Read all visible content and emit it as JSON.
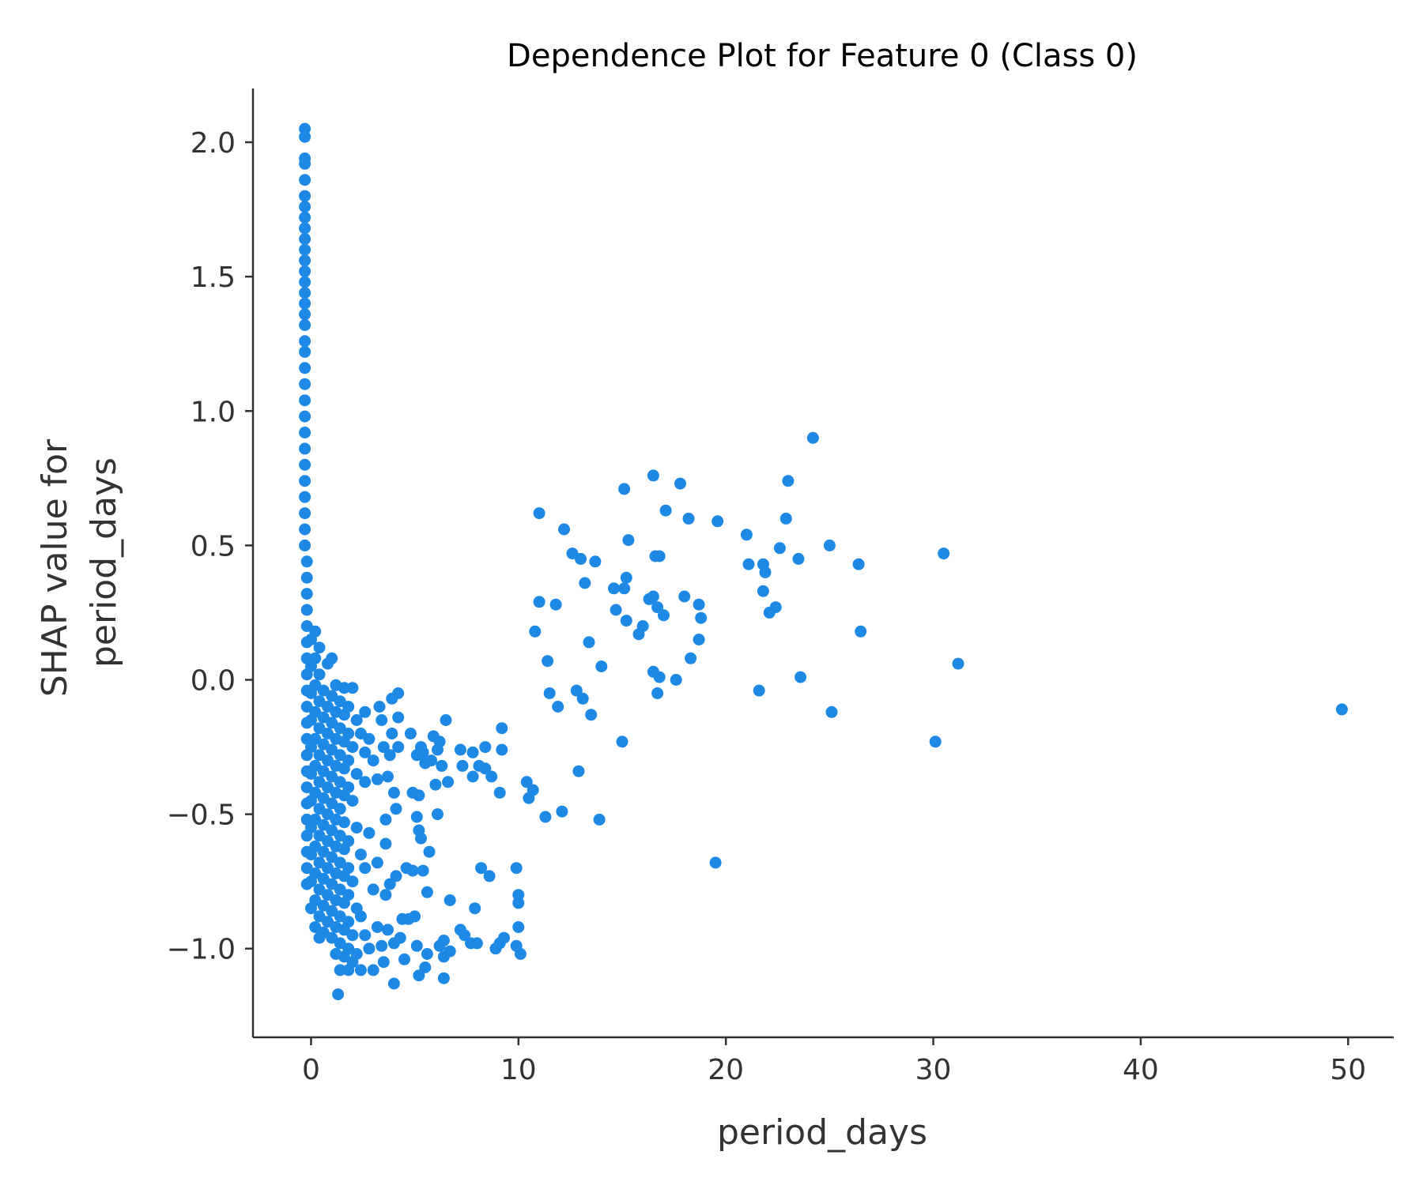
{
  "chart_data": {
    "type": "scatter",
    "title": "Dependence Plot for Feature 0 (Class 0)",
    "xlabel": "period_days",
    "ylabel_lines": [
      "SHAP value for",
      "period_days"
    ],
    "xlim": [
      -2.8,
      52.2
    ],
    "ylim": [
      -1.33,
      2.2
    ],
    "xticks": [
      0,
      10,
      20,
      30,
      40,
      50
    ],
    "xtick_labels": [
      "0",
      "10",
      "20",
      "30",
      "40",
      "50"
    ],
    "yticks": [
      -1.0,
      -0.5,
      0.0,
      0.5,
      1.0,
      1.5,
      2.0
    ],
    "ytick_labels": [
      "−1.0",
      "−0.5",
      "0.0",
      "0.5",
      "1.0",
      "1.5",
      "2.0"
    ],
    "grid": false,
    "point_color": "#1e88e5",
    "points": [
      [
        -0.3,
        2.05
      ],
      [
        -0.3,
        2.02
      ],
      [
        -0.3,
        1.94
      ],
      [
        -0.3,
        1.92
      ],
      [
        -0.3,
        1.86
      ],
      [
        -0.3,
        1.8
      ],
      [
        -0.3,
        1.76
      ],
      [
        -0.3,
        1.72
      ],
      [
        -0.3,
        1.68
      ],
      [
        -0.3,
        1.64
      ],
      [
        -0.3,
        1.6
      ],
      [
        -0.3,
        1.56
      ],
      [
        -0.3,
        1.52
      ],
      [
        -0.3,
        1.48
      ],
      [
        -0.3,
        1.44
      ],
      [
        -0.3,
        1.4
      ],
      [
        -0.3,
        1.36
      ],
      [
        -0.3,
        1.32
      ],
      [
        -0.3,
        1.26
      ],
      [
        -0.3,
        1.22
      ],
      [
        -0.3,
        1.16
      ],
      [
        -0.3,
        1.1
      ],
      [
        -0.3,
        1.04
      ],
      [
        -0.3,
        0.98
      ],
      [
        -0.3,
        0.92
      ],
      [
        -0.3,
        0.86
      ],
      [
        -0.3,
        0.8
      ],
      [
        -0.3,
        0.74
      ],
      [
        -0.3,
        0.68
      ],
      [
        -0.3,
        0.62
      ],
      [
        -0.3,
        0.56
      ],
      [
        -0.3,
        0.5
      ],
      [
        -0.2,
        0.44
      ],
      [
        -0.2,
        0.38
      ],
      [
        -0.2,
        0.32
      ],
      [
        -0.2,
        0.26
      ],
      [
        -0.2,
        0.2
      ],
      [
        -0.2,
        0.14
      ],
      [
        -0.2,
        0.08
      ],
      [
        -0.2,
        0.02
      ],
      [
        -0.2,
        -0.04
      ],
      [
        -0.2,
        -0.1
      ],
      [
        -0.2,
        -0.16
      ],
      [
        -0.2,
        -0.22
      ],
      [
        -0.2,
        -0.28
      ],
      [
        -0.2,
        -0.34
      ],
      [
        -0.2,
        -0.4
      ],
      [
        -0.2,
        -0.46
      ],
      [
        -0.2,
        -0.52
      ],
      [
        -0.2,
        -0.58
      ],
      [
        -0.2,
        -0.64
      ],
      [
        -0.2,
        -0.7
      ],
      [
        -0.2,
        -0.76
      ],
      [
        0.0,
        -0.05
      ],
      [
        0.0,
        -0.15
      ],
      [
        0.0,
        -0.25
      ],
      [
        0.0,
        -0.35
      ],
      [
        0.0,
        -0.45
      ],
      [
        0.0,
        -0.55
      ],
      [
        0.0,
        -0.65
      ],
      [
        0.0,
        -0.75
      ],
      [
        0.0,
        -0.85
      ],
      [
        0.0,
        0.05
      ],
      [
        0.0,
        0.15
      ],
      [
        0.2,
        0.18
      ],
      [
        0.2,
        0.08
      ],
      [
        0.2,
        -0.02
      ],
      [
        0.2,
        -0.12
      ],
      [
        0.2,
        -0.22
      ],
      [
        0.2,
        -0.32
      ],
      [
        0.2,
        -0.42
      ],
      [
        0.2,
        -0.52
      ],
      [
        0.2,
        -0.62
      ],
      [
        0.2,
        -0.72
      ],
      [
        0.2,
        -0.82
      ],
      [
        0.2,
        -0.92
      ],
      [
        0.4,
        0.12
      ],
      [
        0.4,
        0.02
      ],
      [
        0.4,
        -0.08
      ],
      [
        0.4,
        -0.18
      ],
      [
        0.4,
        -0.28
      ],
      [
        0.4,
        -0.38
      ],
      [
        0.4,
        -0.48
      ],
      [
        0.4,
        -0.58
      ],
      [
        0.4,
        -0.68
      ],
      [
        0.4,
        -0.78
      ],
      [
        0.4,
        -0.88
      ],
      [
        0.4,
        -0.96
      ],
      [
        0.6,
        -0.04
      ],
      [
        0.6,
        -0.14
      ],
      [
        0.6,
        -0.24
      ],
      [
        0.6,
        -0.34
      ],
      [
        0.6,
        -0.44
      ],
      [
        0.6,
        -0.54
      ],
      [
        0.6,
        -0.64
      ],
      [
        0.6,
        -0.74
      ],
      [
        0.6,
        -0.84
      ],
      [
        0.6,
        -0.94
      ],
      [
        0.8,
        0.06
      ],
      [
        0.8,
        -0.1
      ],
      [
        0.8,
        -0.2
      ],
      [
        0.8,
        -0.3
      ],
      [
        0.8,
        -0.4
      ],
      [
        0.8,
        -0.5
      ],
      [
        0.8,
        -0.6
      ],
      [
        0.8,
        -0.7
      ],
      [
        0.8,
        -0.8
      ],
      [
        0.8,
        -0.9
      ],
      [
        1.0,
        0.08
      ],
      [
        1.0,
        -0.06
      ],
      [
        1.0,
        -0.16
      ],
      [
        1.0,
        -0.26
      ],
      [
        1.0,
        -0.36
      ],
      [
        1.0,
        -0.46
      ],
      [
        1.0,
        -0.56
      ],
      [
        1.0,
        -0.66
      ],
      [
        1.0,
        -0.76
      ],
      [
        1.0,
        -0.86
      ],
      [
        1.0,
        -0.96
      ],
      [
        1.2,
        -0.02
      ],
      [
        1.2,
        -0.12
      ],
      [
        1.2,
        -0.22
      ],
      [
        1.2,
        -0.32
      ],
      [
        1.2,
        -0.42
      ],
      [
        1.2,
        -0.52
      ],
      [
        1.2,
        -0.62
      ],
      [
        1.2,
        -0.72
      ],
      [
        1.2,
        -0.82
      ],
      [
        1.2,
        -0.92
      ],
      [
        1.2,
        -1.02
      ],
      [
        1.3,
        -1.17
      ],
      [
        1.4,
        -0.08
      ],
      [
        1.4,
        -0.18
      ],
      [
        1.4,
        -0.28
      ],
      [
        1.4,
        -0.38
      ],
      [
        1.4,
        -0.48
      ],
      [
        1.4,
        -0.58
      ],
      [
        1.4,
        -0.68
      ],
      [
        1.4,
        -0.78
      ],
      [
        1.4,
        -0.88
      ],
      [
        1.4,
        -0.98
      ],
      [
        1.4,
        -1.08
      ],
      [
        1.6,
        -0.03
      ],
      [
        1.6,
        -0.13
      ],
      [
        1.6,
        -0.23
      ],
      [
        1.6,
        -0.33
      ],
      [
        1.6,
        -0.43
      ],
      [
        1.6,
        -0.53
      ],
      [
        1.6,
        -0.63
      ],
      [
        1.6,
        -0.73
      ],
      [
        1.6,
        -0.83
      ],
      [
        1.6,
        -0.93
      ],
      [
        1.6,
        -1.03
      ],
      [
        1.8,
        -0.1
      ],
      [
        1.8,
        -0.2
      ],
      [
        1.8,
        -0.3
      ],
      [
        1.8,
        -0.4
      ],
      [
        1.8,
        -0.6
      ],
      [
        1.8,
        -0.7
      ],
      [
        1.8,
        -0.8
      ],
      [
        1.8,
        -0.9
      ],
      [
        1.8,
        -1.0
      ],
      [
        1.8,
        -1.08
      ],
      [
        2.0,
        -0.03
      ],
      [
        2.0,
        -0.25
      ],
      [
        2.0,
        -0.45
      ],
      [
        2.0,
        -0.75
      ],
      [
        2.0,
        -0.95
      ],
      [
        2.0,
        -1.05
      ],
      [
        2.2,
        -0.15
      ],
      [
        2.2,
        -0.35
      ],
      [
        2.2,
        -0.55
      ],
      [
        2.2,
        -0.85
      ],
      [
        2.2,
        -1.02
      ],
      [
        2.4,
        -0.2
      ],
      [
        2.4,
        -0.65
      ],
      [
        2.4,
        -0.88
      ],
      [
        2.4,
        -1.08
      ],
      [
        2.6,
        -0.12
      ],
      [
        2.6,
        -0.27
      ],
      [
        2.6,
        -0.38
      ],
      [
        2.6,
        -0.7
      ],
      [
        2.6,
        -0.95
      ],
      [
        2.8,
        -0.22
      ],
      [
        2.8,
        -0.57
      ],
      [
        2.8,
        -1.0
      ],
      [
        3.0,
        -0.3
      ],
      [
        3.0,
        -0.78
      ],
      [
        3.0,
        -1.08
      ],
      [
        3.2,
        -0.37
      ],
      [
        3.2,
        -0.68
      ],
      [
        3.2,
        -0.92
      ],
      [
        3.3,
        -0.1
      ],
      [
        3.4,
        -0.15
      ],
      [
        3.4,
        -0.99
      ],
      [
        3.5,
        -0.25
      ],
      [
        3.5,
        -1.05
      ],
      [
        3.6,
        -0.61
      ],
      [
        3.6,
        -0.8
      ],
      [
        3.6,
        -0.52
      ],
      [
        3.7,
        -0.36
      ],
      [
        3.7,
        -0.93
      ],
      [
        3.8,
        -0.28
      ],
      [
        3.8,
        -0.76
      ],
      [
        3.9,
        -0.07
      ],
      [
        3.9,
        -0.2
      ],
      [
        4.0,
        -1.13
      ],
      [
        4.0,
        -0.42
      ],
      [
        4.0,
        -0.98
      ],
      [
        4.1,
        -0.73
      ],
      [
        4.1,
        -0.48
      ],
      [
        4.2,
        -0.05
      ],
      [
        4.2,
        -0.25
      ],
      [
        4.2,
        -0.14
      ],
      [
        4.3,
        -0.96
      ],
      [
        4.4,
        -0.89
      ],
      [
        4.5,
        -1.04
      ],
      [
        4.6,
        -0.7
      ],
      [
        4.7,
        -0.89
      ],
      [
        4.8,
        -0.2
      ],
      [
        4.9,
        -0.42
      ],
      [
        4.9,
        -0.71
      ],
      [
        5.0,
        -0.88
      ],
      [
        5.1,
        -0.28
      ],
      [
        5.1,
        -0.51
      ],
      [
        5.1,
        -0.99
      ],
      [
        5.2,
        -0.43
      ],
      [
        5.2,
        -1.1
      ],
      [
        5.2,
        -0.56
      ],
      [
        5.3,
        -0.25
      ],
      [
        5.3,
        -0.59
      ],
      [
        5.4,
        -0.71
      ],
      [
        5.4,
        -0.27
      ],
      [
        5.5,
        -1.07
      ],
      [
        5.5,
        -0.31
      ],
      [
        5.6,
        -0.79
      ],
      [
        5.6,
        -1.02
      ],
      [
        5.7,
        -0.64
      ],
      [
        5.8,
        -0.3
      ],
      [
        5.9,
        -0.21
      ],
      [
        6.0,
        -0.39
      ],
      [
        6.1,
        -0.26
      ],
      [
        6.1,
        -0.5
      ],
      [
        6.2,
        -0.23
      ],
      [
        6.2,
        -0.99
      ],
      [
        6.3,
        -0.32
      ],
      [
        6.4,
        -1.11
      ],
      [
        6.4,
        -0.97
      ],
      [
        6.4,
        -1.03
      ],
      [
        6.5,
        -0.15
      ],
      [
        6.6,
        -0.38
      ],
      [
        6.7,
        -0.82
      ],
      [
        6.7,
        -1.01
      ],
      [
        7.2,
        -0.26
      ],
      [
        7.2,
        -0.93
      ],
      [
        7.3,
        -0.32
      ],
      [
        7.4,
        -0.95
      ],
      [
        7.7,
        -0.98
      ],
      [
        7.8,
        -0.36
      ],
      [
        7.8,
        -0.27
      ],
      [
        7.9,
        -0.85
      ],
      [
        8.0,
        -0.98
      ],
      [
        8.1,
        -0.32
      ],
      [
        8.2,
        -0.7
      ],
      [
        8.4,
        -0.25
      ],
      [
        8.4,
        -0.33
      ],
      [
        8.6,
        -0.73
      ],
      [
        8.7,
        -0.36
      ],
      [
        8.9,
        -1.0
      ],
      [
        9.1,
        -0.42
      ],
      [
        9.1,
        -0.98
      ],
      [
        9.2,
        -0.18
      ],
      [
        9.2,
        -0.26
      ],
      [
        9.3,
        -0.96
      ],
      [
        9.9,
        -0.99
      ],
      [
        9.9,
        -0.7
      ],
      [
        10.0,
        -0.8
      ],
      [
        10.0,
        -0.83
      ],
      [
        10.0,
        -0.92
      ],
      [
        10.1,
        -1.02
      ],
      [
        10.4,
        -0.38
      ],
      [
        10.5,
        -0.44
      ],
      [
        10.7,
        -0.41
      ],
      [
        10.8,
        0.18
      ],
      [
        11.0,
        0.62
      ],
      [
        11.0,
        0.29
      ],
      [
        11.3,
        -0.51
      ],
      [
        11.4,
        0.07
      ],
      [
        11.5,
        -0.05
      ],
      [
        11.8,
        0.28
      ],
      [
        11.9,
        -0.1
      ],
      [
        12.1,
        -0.49
      ],
      [
        12.2,
        0.56
      ],
      [
        12.6,
        0.47
      ],
      [
        12.8,
        -0.04
      ],
      [
        12.9,
        -0.34
      ],
      [
        13.0,
        0.45
      ],
      [
        13.1,
        -0.07
      ],
      [
        13.2,
        0.36
      ],
      [
        13.4,
        0.14
      ],
      [
        13.5,
        -0.13
      ],
      [
        13.7,
        0.44
      ],
      [
        13.9,
        -0.52
      ],
      [
        14.0,
        0.05
      ],
      [
        14.6,
        0.34
      ],
      [
        14.7,
        0.26
      ],
      [
        15.0,
        -0.23
      ],
      [
        15.1,
        0.71
      ],
      [
        15.1,
        0.34
      ],
      [
        15.2,
        0.38
      ],
      [
        15.2,
        0.22
      ],
      [
        15.3,
        0.52
      ],
      [
        15.8,
        0.17
      ],
      [
        16.0,
        0.2
      ],
      [
        16.3,
        0.3
      ],
      [
        16.5,
        0.76
      ],
      [
        16.5,
        0.31
      ],
      [
        16.5,
        0.03
      ],
      [
        16.6,
        0.46
      ],
      [
        16.7,
        0.27
      ],
      [
        16.7,
        -0.05
      ],
      [
        16.8,
        0.46
      ],
      [
        16.8,
        0.01
      ],
      [
        17.0,
        0.24
      ],
      [
        17.1,
        0.63
      ],
      [
        17.6,
        0.0
      ],
      [
        17.8,
        0.73
      ],
      [
        18.0,
        0.31
      ],
      [
        18.2,
        0.6
      ],
      [
        18.3,
        0.08
      ],
      [
        18.7,
        0.28
      ],
      [
        18.7,
        0.15
      ],
      [
        18.8,
        0.23
      ],
      [
        19.5,
        -0.68
      ],
      [
        19.6,
        0.59
      ],
      [
        21.0,
        0.54
      ],
      [
        21.1,
        0.43
      ],
      [
        21.6,
        -0.04
      ],
      [
        21.8,
        0.43
      ],
      [
        21.8,
        0.33
      ],
      [
        21.9,
        0.4
      ],
      [
        22.1,
        0.25
      ],
      [
        22.4,
        0.27
      ],
      [
        22.6,
        0.49
      ],
      [
        22.9,
        0.6
      ],
      [
        23.0,
        0.74
      ],
      [
        23.5,
        0.45
      ],
      [
        23.6,
        0.01
      ],
      [
        24.2,
        0.9
      ],
      [
        25.0,
        0.5
      ],
      [
        25.1,
        -0.12
      ],
      [
        26.4,
        0.43
      ],
      [
        26.5,
        0.18
      ],
      [
        30.1,
        -0.23
      ],
      [
        30.5,
        0.47
      ],
      [
        31.2,
        0.06
      ],
      [
        49.7,
        -0.11
      ]
    ]
  }
}
